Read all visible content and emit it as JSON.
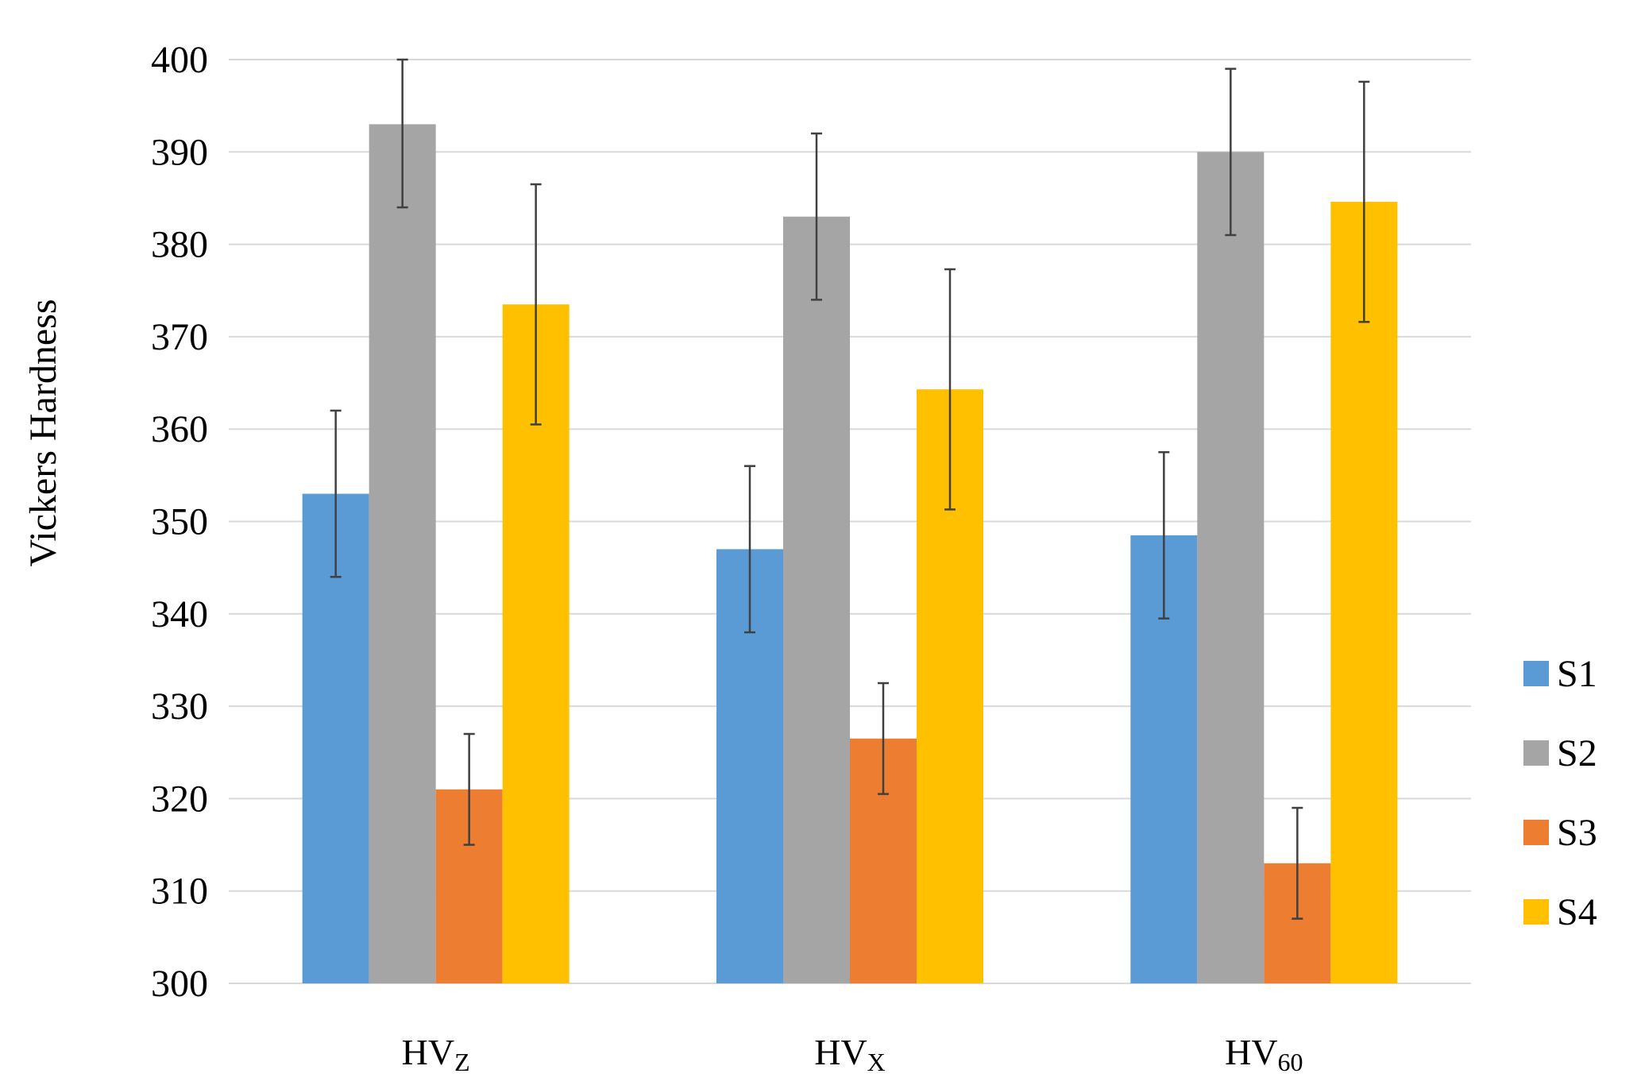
{
  "chart_data": {
    "type": "bar",
    "title": "",
    "xlabel": "",
    "ylabel": "Vickers Hardness",
    "ylim": [
      300,
      400
    ],
    "yticks": [
      300,
      310,
      320,
      330,
      340,
      350,
      360,
      370,
      380,
      390,
      400
    ],
    "grid": true,
    "legend_position": "right",
    "categories": [
      {
        "base": "HV",
        "sub": "Z"
      },
      {
        "base": "HV",
        "sub": "X"
      },
      {
        "base": "HV",
        "sub": "60"
      }
    ],
    "series": [
      {
        "name": "S1",
        "color": "#5B9BD5",
        "values": [
          353,
          347,
          348.5
        ],
        "errors": [
          9,
          9,
          9
        ]
      },
      {
        "name": "S2",
        "color": "#A5A5A5",
        "values": [
          393,
          383,
          390
        ],
        "errors": [
          9,
          9,
          9
        ]
      },
      {
        "name": "S3",
        "color": "#ED7D31",
        "values": [
          321,
          326.5,
          313
        ],
        "errors": [
          6,
          6,
          6
        ]
      },
      {
        "name": "S4",
        "color": "#FFC000",
        "values": [
          373.5,
          364.3,
          384.6
        ],
        "errors": [
          13,
          13,
          13
        ]
      }
    ]
  }
}
